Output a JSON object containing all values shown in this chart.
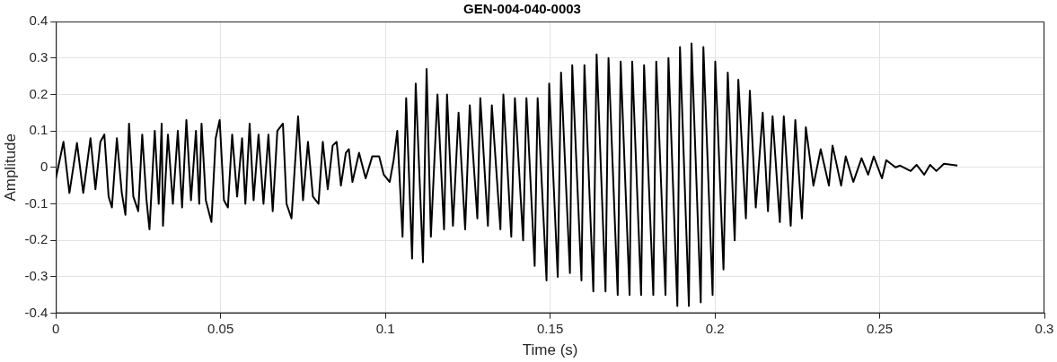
{
  "chart_data": {
    "type": "line",
    "title": "GEN-004-040-0003",
    "xlabel": "Time (s)",
    "ylabel": "Amplitude",
    "xlim": [
      0,
      0.3
    ],
    "ylim": [
      -0.4,
      0.4
    ],
    "xticks": [
      0,
      0.05,
      0.1,
      0.15,
      0.2,
      0.25,
      0.3
    ],
    "yticks": [
      -0.4,
      -0.3,
      -0.2,
      -0.1,
      0,
      0.1,
      0.2,
      0.3,
      0.4
    ],
    "grid": true,
    "legend": false,
    "marker": "none",
    "line_style": "solid",
    "series": [
      {
        "color": "#000000",
        "x": [
          0,
          0.0023,
          0.0041,
          0.0064,
          0.0083,
          0.0105,
          0.012,
          0.0135,
          0.0147,
          0.016,
          0.017,
          0.0185,
          0.02,
          0.0211,
          0.0222,
          0.0235,
          0.025,
          0.0262,
          0.0275,
          0.0284,
          0.03,
          0.0312,
          0.0321,
          0.0325,
          0.034,
          0.0355,
          0.037,
          0.0383,
          0.0396,
          0.041,
          0.0425,
          0.0435,
          0.0442,
          0.0455,
          0.0472,
          0.0485,
          0.0497,
          0.051,
          0.0522,
          0.0535,
          0.055,
          0.0565,
          0.0575,
          0.0588,
          0.06,
          0.0615,
          0.063,
          0.0645,
          0.0658,
          0.0672,
          0.0689,
          0.07,
          0.0715,
          0.0735,
          0.075,
          0.0765,
          0.078,
          0.0797,
          0.081,
          0.0825,
          0.084,
          0.0852,
          0.0865,
          0.088,
          0.0889,
          0.09,
          0.092,
          0.094,
          0.096,
          0.0981,
          0.0995,
          0.1013,
          0.1025,
          0.1036,
          0.1052,
          0.1063,
          0.1081,
          0.1092,
          0.1114,
          0.1125,
          0.1138,
          0.1158,
          0.1178,
          0.1187,
          0.1205,
          0.1222,
          0.1242,
          0.1256,
          0.1279,
          0.1288,
          0.1311,
          0.1323,
          0.1349,
          0.1358,
          0.1382,
          0.1393,
          0.1418,
          0.1428,
          0.1453,
          0.1462,
          0.1489,
          0.1497,
          0.1523,
          0.1533,
          0.156,
          0.1567,
          0.1595,
          0.1604,
          0.1631,
          0.1641,
          0.1668,
          0.1677,
          0.1705,
          0.1714,
          0.1741,
          0.1749,
          0.1776,
          0.1785,
          0.1813,
          0.1822,
          0.185,
          0.1859,
          0.1886,
          0.1894,
          0.1921,
          0.1929,
          0.1957,
          0.1965,
          0.1993,
          0.2001,
          0.2026,
          0.2039,
          0.206,
          0.2071,
          0.2094,
          0.2106,
          0.2124,
          0.2145,
          0.2161,
          0.2175,
          0.2197,
          0.2209,
          0.223,
          0.2244,
          0.2264,
          0.2276,
          0.2299,
          0.2321,
          0.2346,
          0.2357,
          0.2383,
          0.2397,
          0.242,
          0.2445,
          0.2465,
          0.2482,
          0.2507,
          0.252,
          0.2548,
          0.2562,
          0.2594,
          0.2612,
          0.2635,
          0.2653,
          0.2672,
          0.2695,
          0.2736
        ],
        "values": [
          -0.03,
          0.07,
          -0.07,
          0.067,
          -0.07,
          0.08,
          -0.06,
          0.07,
          0.09,
          -0.08,
          -0.11,
          0.08,
          -0.07,
          -0.13,
          0.12,
          -0.08,
          -0.12,
          0.09,
          -0.09,
          -0.17,
          0.1,
          -0.1,
          0.12,
          -0.16,
          0.09,
          -0.1,
          0.1,
          -0.11,
          0.13,
          -0.09,
          0.1,
          -0.1,
          0.12,
          -0.09,
          -0.15,
          0.08,
          0.13,
          -0.09,
          -0.11,
          0.09,
          -0.08,
          0.08,
          -0.1,
          0.12,
          -0.09,
          0.09,
          -0.1,
          0.09,
          -0.12,
          0.1,
          0.12,
          -0.1,
          -0.14,
          0.14,
          -0.09,
          0.07,
          -0.08,
          -0.1,
          0.07,
          -0.06,
          0.06,
          0.07,
          -0.05,
          0.04,
          0.05,
          -0.04,
          0.04,
          -0.03,
          0.03,
          0.03,
          -0.02,
          -0.04,
          0.02,
          0.1,
          -0.19,
          0.19,
          -0.25,
          0.23,
          -0.26,
          0.27,
          -0.19,
          0.2,
          -0.17,
          0.2,
          -0.16,
          0.15,
          -0.17,
          0.17,
          -0.14,
          0.19,
          -0.16,
          0.17,
          -0.17,
          0.2,
          -0.19,
          0.19,
          -0.2,
          0.19,
          -0.27,
          0.19,
          -0.31,
          0.23,
          -0.3,
          0.26,
          -0.29,
          0.28,
          -0.31,
          0.28,
          -0.34,
          0.31,
          -0.34,
          0.3,
          -0.35,
          0.29,
          -0.35,
          0.29,
          -0.35,
          0.28,
          -0.35,
          0.29,
          -0.35,
          0.3,
          -0.38,
          0.33,
          -0.38,
          0.34,
          -0.37,
          0.33,
          -0.35,
          0.29,
          -0.28,
          0.26,
          -0.2,
          0.24,
          -0.14,
          0.21,
          -0.11,
          0.15,
          -0.12,
          0.14,
          -0.15,
          0.14,
          -0.16,
          0.13,
          -0.14,
          0.11,
          -0.05,
          0.05,
          -0.05,
          0.06,
          -0.05,
          0.03,
          -0.04,
          0.025,
          -0.02,
          0.03,
          -0.03,
          0.02,
          0,
          0.005,
          -0.01,
          0.007,
          -0.02,
          0.007,
          -0.01,
          0.01,
          0.005
        ]
      }
    ]
  }
}
